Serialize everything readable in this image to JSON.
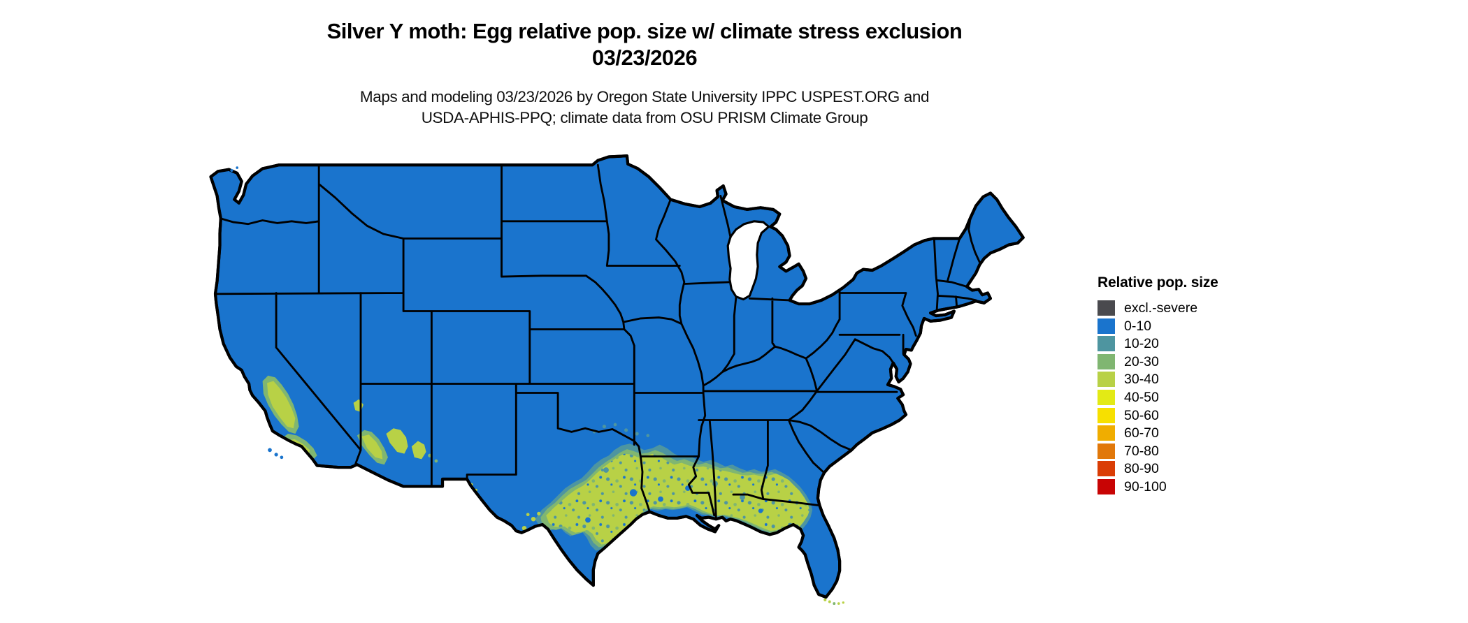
{
  "title": {
    "line1": "Silver Y moth: Egg relative pop. size w/ climate stress exclusion",
    "line2": "03/23/2026"
  },
  "subtitle": {
    "line1": "Maps and modeling 03/23/2026 by Oregon State University IPPC USPEST.ORG and",
    "line2": "USDA-APHIS-PPQ; climate data from OSU PRISM Climate Group"
  },
  "legend": {
    "title": "Relative pop. size",
    "items": [
      {
        "label": "excl.-severe",
        "color": "#4a4a4e"
      },
      {
        "label": "0-10",
        "color": "#1a74cd"
      },
      {
        "label": "10-20",
        "color": "#4e95a0"
      },
      {
        "label": "20-30",
        "color": "#80b671"
      },
      {
        "label": "30-40",
        "color": "#b8d146"
      },
      {
        "label": "40-50",
        "color": "#e3ea15"
      },
      {
        "label": "50-60",
        "color": "#f7e000"
      },
      {
        "label": "60-70",
        "color": "#f0ad00"
      },
      {
        "label": "70-80",
        "color": "#e1780a"
      },
      {
        "label": "80-90",
        "color": "#da3d05"
      },
      {
        "label": "90-100",
        "color": "#c80404"
      }
    ]
  },
  "map": {
    "dominant_class": "0-10",
    "state_border_color": "#000000",
    "water_color": "#ffffff"
  }
}
